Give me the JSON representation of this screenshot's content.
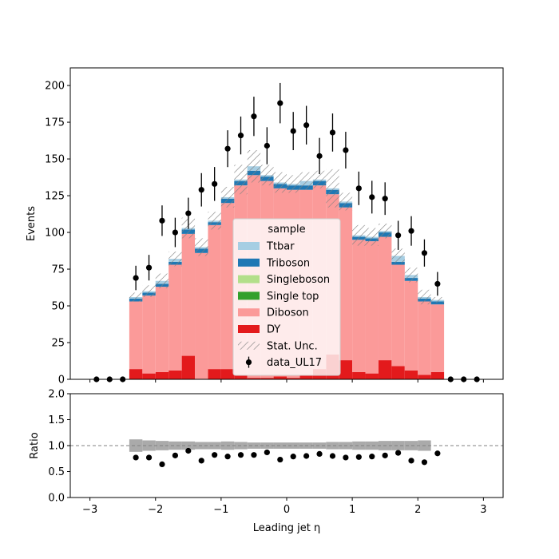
{
  "chart_data": [
    {
      "type": "bar",
      "stacked": true,
      "ylabel": "Events",
      "ylim": [
        0,
        212
      ],
      "yticks": [
        0,
        25,
        50,
        75,
        100,
        125,
        150,
        175,
        200
      ],
      "xlim": [
        -3.3,
        3.3
      ],
      "xticks": [
        -3,
        -2,
        -1,
        0,
        1,
        2,
        3
      ],
      "bin_edges": [
        -3.0,
        -2.8,
        -2.6,
        -2.4,
        -2.2,
        -2.0,
        -1.8,
        -1.6,
        -1.4,
        -1.2,
        -1.0,
        -0.8,
        -0.6,
        -0.4,
        -0.2,
        0.0,
        0.2,
        0.4,
        0.6,
        0.8,
        1.0,
        1.2,
        1.4,
        1.6,
        1.8,
        2.0,
        2.2,
        2.4,
        2.6,
        2.8,
        3.0
      ],
      "legend_title": "sample",
      "legend_position": "center",
      "series": [
        {
          "name": "DY",
          "color": "#e31a1c",
          "values": [
            0,
            0,
            0,
            7,
            4,
            5,
            6,
            16,
            0,
            7,
            7,
            3,
            1,
            1,
            2,
            1,
            3,
            7,
            17,
            13,
            5,
            4,
            13,
            9,
            6,
            3,
            5,
            0,
            0,
            0
          ]
        },
        {
          "name": "Single top",
          "color": "#33a02c",
          "values": [
            0,
            0,
            0,
            0,
            0,
            0,
            0,
            0,
            0,
            0,
            0,
            0,
            0,
            0,
            0,
            0,
            0,
            0,
            0,
            0,
            0,
            0,
            0,
            0,
            0,
            0,
            0,
            0,
            0,
            0
          ]
        },
        {
          "name": "Singleboson",
          "color": "#b2df8a",
          "values": [
            0,
            0,
            0,
            0,
            0,
            0,
            0,
            0,
            0,
            0,
            0,
            0,
            0,
            0,
            0,
            0,
            0,
            0,
            0,
            0,
            0,
            0,
            0,
            0,
            0,
            0,
            0,
            0,
            0,
            0
          ]
        },
        {
          "name": "Diboson",
          "color": "#fb9a99",
          "values": [
            0,
            0,
            0,
            46,
            53,
            58,
            72,
            83,
            86,
            98,
            113,
            129,
            138,
            134,
            128,
            128,
            126,
            125,
            109,
            104,
            90,
            90,
            84,
            69,
            61,
            50,
            46,
            0,
            0,
            0
          ]
        },
        {
          "name": "Triboson",
          "color": "#1f78b4",
          "values": [
            0,
            0,
            0,
            2,
            2,
            2,
            2,
            3,
            3,
            2,
            3,
            3,
            3,
            3,
            3,
            3,
            3,
            3,
            3,
            3,
            2,
            2,
            3,
            2,
            2,
            2,
            2,
            0,
            0,
            0
          ]
        },
        {
          "name": "Ttbar",
          "color": "#a6cee3",
          "values": [
            0,
            0,
            0,
            1,
            1,
            2,
            2,
            1,
            1,
            1,
            1,
            1,
            3,
            1,
            1,
            1,
            3,
            1,
            1,
            1,
            1,
            1,
            1,
            4,
            2,
            1,
            1,
            0,
            0,
            0
          ]
        }
      ],
      "uncertainty": {
        "name": "Stat. Unc.",
        "values": [
          0,
          0,
          0,
          3,
          4,
          5,
          5,
          7,
          6,
          6,
          7,
          10,
          11,
          7,
          7,
          6,
          6,
          6,
          13,
          6,
          7,
          6,
          5,
          5,
          5,
          5,
          2,
          0,
          0,
          0
        ]
      },
      "data": {
        "name": "data_UL17",
        "x": [
          -2.9,
          -2.7,
          -2.5,
          -2.3,
          -2.1,
          -1.9,
          -1.7,
          -1.5,
          -1.3,
          -1.1,
          -0.9,
          -0.7,
          -0.5,
          -0.3,
          -0.1,
          0.1,
          0.3,
          0.5,
          0.7,
          0.9,
          1.1,
          1.3,
          1.5,
          1.7,
          1.9,
          2.1,
          2.3,
          2.5,
          2.7,
          2.9
        ],
        "y": [
          0,
          0,
          0,
          69,
          76,
          108,
          100,
          113,
          129,
          133,
          157,
          166,
          179,
          159,
          188,
          169,
          173,
          152,
          168,
          156,
          130,
          124,
          123,
          98,
          101,
          86,
          65,
          0,
          0,
          0
        ]
      },
      "legend": [
        "Ttbar",
        "Triboson",
        "Singleboson",
        "Single top",
        "Diboson",
        "DY",
        "Stat. Unc.",
        "data_UL17"
      ]
    },
    {
      "type": "scatter",
      "xlabel": "Leading jet  η",
      "ylabel": "Ratio",
      "ylim": [
        0.0,
        2.0
      ],
      "yticks": [
        "0.0",
        "0.5",
        "1.0",
        "1.5",
        "2.0"
      ],
      "reference_line": 1.0,
      "x": [
        -2.3,
        -2.1,
        -1.9,
        -1.7,
        -1.5,
        -1.3,
        -1.1,
        -0.9,
        -0.7,
        -0.5,
        -0.3,
        -0.1,
        0.1,
        0.3,
        0.5,
        0.7,
        0.9,
        1.1,
        1.3,
        1.5,
        1.7,
        1.9,
        2.1,
        2.3
      ],
      "y": [
        0.77,
        0.77,
        0.64,
        0.81,
        0.9,
        0.71,
        0.82,
        0.79,
        0.82,
        0.82,
        0.87,
        0.73,
        0.79,
        0.8,
        0.84,
        0.8,
        0.77,
        0.78,
        0.79,
        0.81,
        0.86,
        0.71,
        0.68,
        0.85
      ],
      "band_halfwidth": [
        0.12,
        0.1,
        0.09,
        0.08,
        0.08,
        0.07,
        0.07,
        0.08,
        0.07,
        0.06,
        0.06,
        0.06,
        0.06,
        0.06,
        0.06,
        0.07,
        0.07,
        0.08,
        0.08,
        0.09,
        0.09,
        0.09,
        0.1,
        0.0
      ]
    }
  ]
}
